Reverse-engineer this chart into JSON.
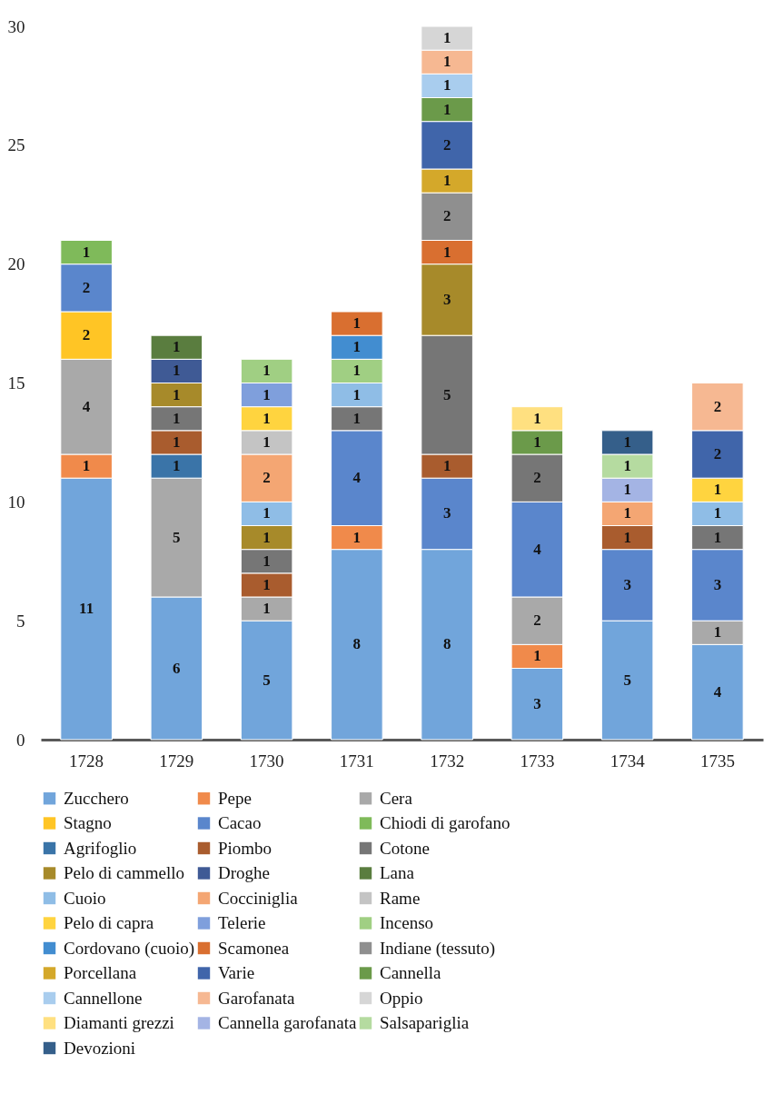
{
  "chart_data": {
    "type": "bar",
    "stacked": true,
    "data_labels": true,
    "legend": "bottom",
    "grid": false,
    "categories": [
      "1728",
      "1729",
      "1730",
      "1731",
      "1732",
      "1733",
      "1734",
      "1735"
    ],
    "ylim": [
      0,
      30
    ],
    "yticks": [
      0,
      5,
      10,
      15,
      20,
      25,
      30
    ],
    "series": [
      {
        "name": "Zucchero",
        "color": "#71a5db",
        "values": [
          11,
          6,
          5,
          8,
          8,
          3,
          5,
          4
        ]
      },
      {
        "name": "Pepe",
        "color": "#f08a4b",
        "values": [
          1,
          null,
          null,
          1,
          null,
          1,
          null,
          null
        ]
      },
      {
        "name": "Cera",
        "color": "#a9a9a9",
        "values": [
          4,
          5,
          1,
          null,
          null,
          2,
          null,
          1
        ]
      },
      {
        "name": "Stagno",
        "color": "#ffc525",
        "values": [
          2,
          null,
          null,
          null,
          null,
          null,
          null,
          null
        ]
      },
      {
        "name": "Cacao",
        "color": "#5a86cc",
        "values": [
          2,
          null,
          null,
          4,
          3,
          4,
          3,
          3
        ]
      },
      {
        "name": "Chiodi di garofano",
        "color": "#7fba5a",
        "values": [
          1,
          null,
          null,
          null,
          null,
          null,
          null,
          null
        ]
      },
      {
        "name": "Agrifoglio",
        "color": "#3a74a8",
        "values": [
          null,
          1,
          null,
          null,
          null,
          null,
          null,
          null
        ]
      },
      {
        "name": "Piombo",
        "color": "#a95c2e",
        "values": [
          null,
          1,
          1,
          null,
          1,
          null,
          1,
          null
        ]
      },
      {
        "name": "Cotone",
        "color": "#767676",
        "values": [
          null,
          1,
          1,
          1,
          5,
          2,
          null,
          1
        ]
      },
      {
        "name": "Pelo di cammello",
        "color": "#a78a2a",
        "values": [
          null,
          1,
          1,
          null,
          3,
          null,
          null,
          null
        ]
      },
      {
        "name": "Droghe",
        "color": "#3f5a95",
        "values": [
          null,
          1,
          null,
          null,
          null,
          null,
          null,
          null
        ]
      },
      {
        "name": "Lana",
        "color": "#5a7d3f",
        "values": [
          null,
          1,
          null,
          null,
          null,
          null,
          null,
          null
        ]
      },
      {
        "name": "Cuoio",
        "color": "#8fbde6",
        "values": [
          null,
          null,
          1,
          1,
          null,
          null,
          null,
          1
        ]
      },
      {
        "name": "Cocciniglia",
        "color": "#f4a673",
        "values": [
          null,
          null,
          2,
          null,
          null,
          null,
          1,
          null
        ]
      },
      {
        "name": "Rame",
        "color": "#c4c4c4",
        "values": [
          null,
          null,
          1,
          null,
          null,
          null,
          null,
          null
        ]
      },
      {
        "name": "Pelo di capra",
        "color": "#ffd43f",
        "values": [
          null,
          null,
          1,
          null,
          null,
          null,
          null,
          1
        ]
      },
      {
        "name": "Telerie",
        "color": "#7f9fdc",
        "values": [
          null,
          null,
          1,
          null,
          null,
          null,
          null,
          null
        ]
      },
      {
        "name": "Incenso",
        "color": "#a0cf83",
        "values": [
          null,
          null,
          1,
          1,
          null,
          null,
          null,
          null
        ]
      },
      {
        "name": "Cordovano (cuoio)",
        "color": "#428dd0",
        "values": [
          null,
          null,
          null,
          1,
          null,
          null,
          null,
          null
        ]
      },
      {
        "name": "Scamonea",
        "color": "#d96f30",
        "values": [
          null,
          null,
          null,
          1,
          1,
          null,
          null,
          null
        ]
      },
      {
        "name": "Indiane (tessuto)",
        "color": "#8f8f8f",
        "values": [
          null,
          null,
          null,
          null,
          2,
          null,
          null,
          null
        ]
      },
      {
        "name": "Porcellana",
        "color": "#d4a82a",
        "values": [
          null,
          null,
          null,
          null,
          1,
          null,
          null,
          null
        ]
      },
      {
        "name": "Varie",
        "color": "#4065aa",
        "values": [
          null,
          null,
          null,
          null,
          2,
          null,
          null,
          2
        ]
      },
      {
        "name": "Cannella",
        "color": "#6b9a4a",
        "values": [
          null,
          null,
          null,
          null,
          1,
          1,
          null,
          null
        ]
      },
      {
        "name": "Cannellone",
        "color": "#a9cdee",
        "values": [
          null,
          null,
          null,
          null,
          1,
          null,
          null,
          null
        ]
      },
      {
        "name": "Garofanata",
        "color": "#f6b892",
        "values": [
          null,
          null,
          null,
          null,
          1,
          null,
          null,
          2
        ]
      },
      {
        "name": "Oppio",
        "color": "#d6d6d6",
        "values": [
          null,
          null,
          null,
          null,
          1,
          null,
          null,
          null
        ]
      },
      {
        "name": "Diamanti grezzi",
        "color": "#ffe080",
        "values": [
          null,
          null,
          null,
          null,
          null,
          1,
          null,
          null
        ]
      },
      {
        "name": "Cannella garofanata",
        "color": "#a4b4e4",
        "values": [
          null,
          null,
          null,
          null,
          null,
          null,
          1,
          null
        ]
      },
      {
        "name": "Salsapariglia",
        "color": "#b5dba0",
        "values": [
          null,
          null,
          null,
          null,
          null,
          null,
          1,
          null
        ]
      },
      {
        "name": "Devozioni",
        "color": "#355f8a",
        "values": [
          null,
          null,
          null,
          null,
          null,
          null,
          1,
          null
        ]
      }
    ]
  }
}
